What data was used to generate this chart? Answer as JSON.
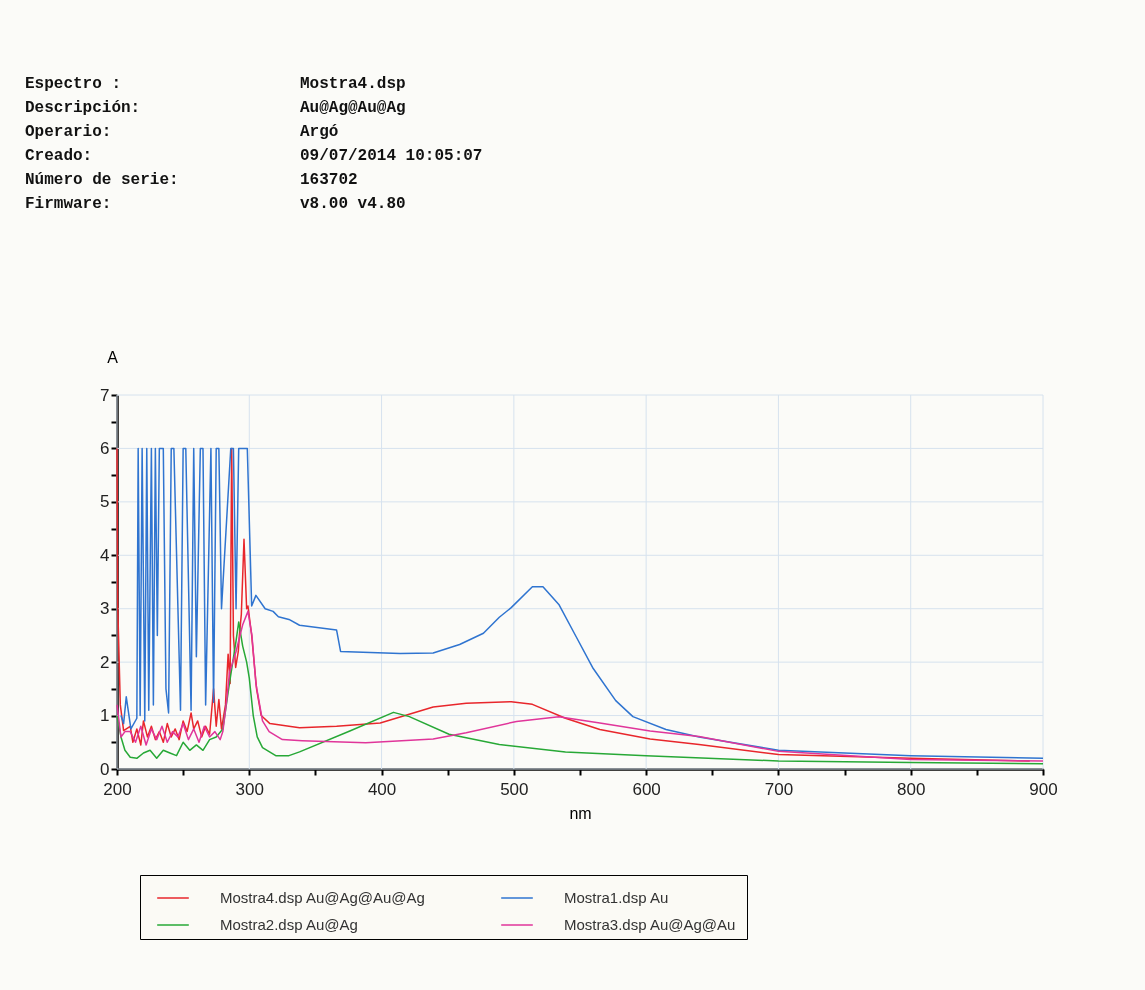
{
  "chart_data": {
    "type": "line",
    "xlabel": "nm",
    "ylabel": "A",
    "annotations": [
      "Espectro :",
      "Mostra4.dsp",
      "Descripción:",
      "Au@Ag@Au@Ag",
      "Operario:",
      "Argó",
      "Creado:",
      "09/07/2014 10:05:07",
      "Número de serie:",
      "163702",
      "Firmware:",
      "v8.00 v4.80"
    ],
    "xlim": [
      200,
      900
    ],
    "ylim": [
      0,
      7
    ],
    "xticks": [
      200,
      {
        "value": 250,
        "label": null
      },
      300,
      {
        "value": 350,
        "label": null
      },
      400,
      {
        "value": 450,
        "label": null
      },
      500,
      {
        "value": 550,
        "label": null
      },
      600,
      {
        "value": 650,
        "label": null
      },
      700,
      {
        "value": 750,
        "label": null
      },
      800,
      {
        "value": 850,
        "label": null
      },
      900
    ],
    "yticks": [
      0,
      {
        "value": 0.5,
        "label": null
      },
      1,
      {
        "value": 1.5,
        "label": null
      },
      2,
      {
        "value": 2.5,
        "label": null
      },
      3,
      {
        "value": 3.5,
        "label": null
      },
      4,
      {
        "value": 4.5,
        "label": null
      },
      5,
      {
        "value": 5.5,
        "label": null
      },
      6,
      {
        "value": 6.5,
        "label": null
      },
      7
    ],
    "grid": true,
    "legend": "bottom",
    "marker": "none",
    "line_style": "solid",
    "series": [
      {
        "name": "Mostra4.dsp  Au@Ag@Au@Ag",
        "color": "#e8262b",
        "x": [
          200,
          200.5,
          202.5,
          205,
          210,
          212,
          215,
          218,
          220,
          223,
          226,
          229,
          232,
          235,
          238,
          241,
          244,
          247,
          250,
          253,
          256,
          258,
          261,
          264,
          267,
          270,
          273,
          275,
          277,
          279,
          282,
          284,
          285.5,
          286.7,
          288,
          289.7,
          291.7,
          292.5,
          294,
          296,
          298,
          299,
          301.8,
          305.5,
          309,
          315.6,
          330,
          338,
          366,
          399,
          439,
          464,
          498,
          514,
          539,
          565,
          603,
          640,
          700,
          800,
          890
        ],
        "values": [
          6.0,
          3.1,
          1.2,
          0.72,
          0.8,
          0.5,
          0.75,
          0.45,
          0.9,
          0.6,
          0.8,
          0.55,
          0.7,
          0.5,
          0.85,
          0.6,
          0.75,
          0.55,
          0.9,
          0.7,
          1.05,
          0.75,
          0.9,
          0.6,
          0.8,
          0.65,
          1.5,
          0.8,
          1.3,
          0.75,
          1.2,
          2.15,
          1.6,
          6.0,
          2.5,
          1.9,
          2.2,
          2.5,
          2.9,
          4.3,
          3.0,
          3.05,
          2.5,
          1.5,
          1.0,
          0.85,
          0.8,
          0.77,
          0.8,
          0.86,
          1.16,
          1.23,
          1.26,
          1.21,
          0.95,
          0.74,
          0.56,
          0.46,
          0.27,
          0.2,
          0.15
        ]
      },
      {
        "name": "Mostra2.dsp  Au@Ag",
        "color": "#27a836",
        "x": [
          200,
          203,
          206,
          210,
          215,
          220,
          225,
          230,
          235,
          240,
          245,
          250,
          255,
          260,
          265,
          270,
          275,
          280,
          285,
          290,
          292,
          295,
          298,
          300,
          303,
          306,
          310,
          320,
          330,
          338,
          376,
          409,
          421,
          451,
          489,
          539,
          600,
          700,
          800,
          900
        ],
        "values": [
          1.0,
          0.6,
          0.35,
          0.22,
          0.2,
          0.3,
          0.35,
          0.2,
          0.35,
          0.3,
          0.25,
          0.5,
          0.35,
          0.45,
          0.35,
          0.55,
          0.6,
          0.75,
          1.6,
          2.4,
          2.75,
          2.3,
          2.0,
          1.7,
          1.0,
          0.6,
          0.4,
          0.25,
          0.25,
          0.32,
          0.71,
          1.06,
          0.98,
          0.65,
          0.46,
          0.32,
          0.25,
          0.15,
          0.12,
          0.1
        ]
      },
      {
        "name": "Mostra1.dsp  Au",
        "color": "#2f74d0",
        "x": [
          203,
          205,
          207,
          210.5,
          215,
          216,
          217.5,
          219,
          221,
          222.5,
          224,
          226,
          227.5,
          229,
          230.5,
          232,
          235,
          237,
          239,
          241,
          243,
          248,
          250,
          252,
          256,
          258,
          260,
          263,
          265,
          267,
          271,
          273,
          275,
          277,
          279,
          286,
          288,
          290,
          292,
          296,
          298.5,
          301.8,
          305,
          312,
          318,
          322,
          330,
          338,
          366,
          369,
          414,
          439,
          459,
          477,
          489,
          498,
          514,
          522,
          534,
          547,
          560,
          577,
          590,
          615,
          640,
          700,
          800,
          900
        ],
        "values": [
          1.0,
          0.85,
          1.35,
          0.75,
          0.95,
          6.0,
          1.0,
          6.0,
          0.9,
          6.0,
          1.1,
          6.0,
          1.2,
          6.0,
          2.5,
          6.0,
          6.0,
          1.5,
          1.05,
          6.0,
          6.0,
          1.1,
          6.0,
          6.0,
          1.1,
          6.0,
          2.1,
          6.0,
          6.0,
          1.2,
          6.0,
          1.25,
          6.0,
          6.0,
          3.0,
          6.0,
          6.0,
          3.0,
          6.0,
          6.0,
          6.0,
          3.05,
          3.25,
          3.0,
          2.95,
          2.85,
          2.8,
          2.69,
          2.6,
          2.2,
          2.16,
          2.17,
          2.33,
          2.54,
          2.84,
          3.02,
          3.41,
          3.41,
          3.08,
          2.48,
          1.88,
          1.28,
          0.98,
          0.74,
          0.6,
          0.35,
          0.25,
          0.2
        ]
      },
      {
        "name": "Mostra3.dsp  Au@Ag@Au",
        "color": "#e0359a",
        "x": [
          200,
          203,
          206,
          210,
          214,
          218,
          222,
          226,
          230,
          234,
          238,
          242,
          246,
          250,
          254,
          258,
          262,
          266,
          270,
          274,
          278,
          280,
          283,
          285,
          290,
          295,
          299,
          302,
          305,
          310,
          315,
          325,
          340,
          388,
          439,
          464,
          502,
          534,
          565,
          603,
          640,
          700,
          800,
          900
        ],
        "values": [
          1.2,
          0.6,
          0.7,
          0.7,
          0.5,
          0.8,
          0.45,
          0.75,
          0.55,
          0.8,
          0.5,
          0.7,
          0.6,
          0.85,
          0.55,
          0.75,
          0.5,
          0.8,
          0.6,
          0.7,
          0.55,
          0.7,
          1.3,
          1.8,
          2.2,
          2.7,
          2.95,
          2.5,
          1.6,
          0.9,
          0.7,
          0.55,
          0.53,
          0.49,
          0.56,
          0.68,
          0.89,
          0.98,
          0.86,
          0.71,
          0.61,
          0.33,
          0.18,
          0.15
        ]
      }
    ]
  }
}
